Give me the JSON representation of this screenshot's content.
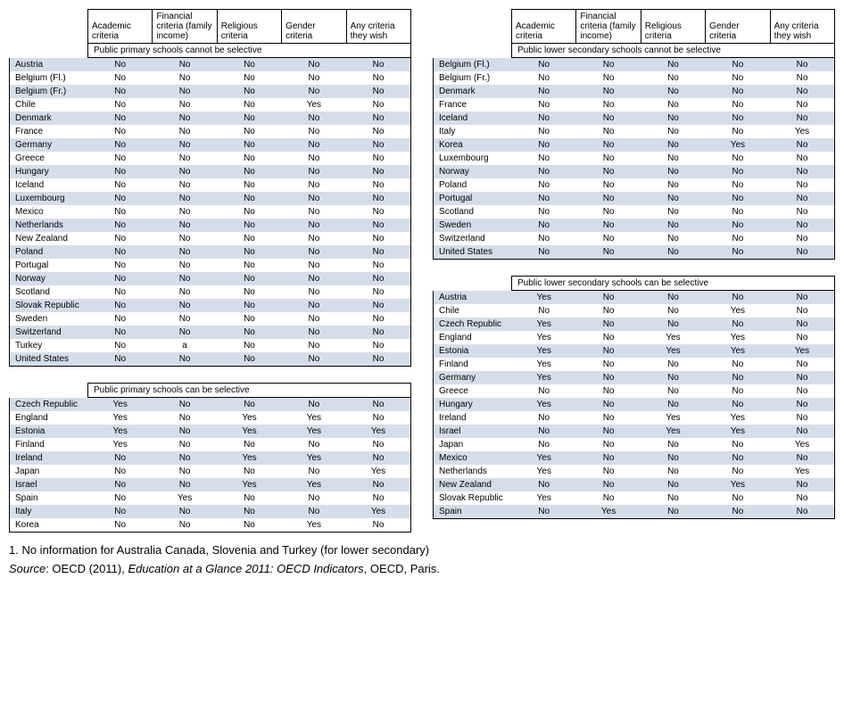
{
  "columns": [
    "Academic criteria",
    "Financial criteria (family income)",
    "Religious criteria",
    "Gender criteria",
    "Any criteria they wish"
  ],
  "colors": {
    "alt_row": "#d4deea",
    "border": "#000000",
    "text": "#000000",
    "background": "#ffffff"
  },
  "tables": [
    {
      "subtitle": "Public primary schools cannot be selective",
      "rows": [
        [
          "Austria",
          "No",
          "No",
          "No",
          "No",
          "No"
        ],
        [
          "Belgium (Fl.)",
          "No",
          "No",
          "No",
          "No",
          "No"
        ],
        [
          "Belgium (Fr.)",
          "No",
          "No",
          "No",
          "No",
          "No"
        ],
        [
          "Chile",
          "No",
          "No",
          "No",
          "Yes",
          "No"
        ],
        [
          "Denmark",
          "No",
          "No",
          "No",
          "No",
          "No"
        ],
        [
          "France",
          "No",
          "No",
          "No",
          "No",
          "No"
        ],
        [
          "Germany",
          "No",
          "No",
          "No",
          "No",
          "No"
        ],
        [
          "Greece",
          "No",
          "No",
          "No",
          "No",
          "No"
        ],
        [
          "Hungary",
          "No",
          "No",
          "No",
          "No",
          "No"
        ],
        [
          "Iceland",
          "No",
          "No",
          "No",
          "No",
          "No"
        ],
        [
          "Luxembourg",
          "No",
          "No",
          "No",
          "No",
          "No"
        ],
        [
          "Mexico",
          "No",
          "No",
          "No",
          "No",
          "No"
        ],
        [
          "Netherlands",
          "No",
          "No",
          "No",
          "No",
          "No"
        ],
        [
          "New Zealand",
          "No",
          "No",
          "No",
          "No",
          "No"
        ],
        [
          "Poland",
          "No",
          "No",
          "No",
          "No",
          "No"
        ],
        [
          "Portugal",
          "No",
          "No",
          "No",
          "No",
          "No"
        ],
        [
          "Norway",
          "No",
          "No",
          "No",
          "No",
          "No"
        ],
        [
          "Scotland",
          "No",
          "No",
          "No",
          "No",
          "No"
        ],
        [
          "Slovak Republic",
          "No",
          "No",
          "No",
          "No",
          "No"
        ],
        [
          "Sweden",
          "No",
          "No",
          "No",
          "No",
          "No"
        ],
        [
          "Switzerland",
          "No",
          "No",
          "No",
          "No",
          "No"
        ],
        [
          "Turkey",
          "No",
          "a",
          "No",
          "No",
          "No"
        ],
        [
          "United States",
          "No",
          "No",
          "No",
          "No",
          "No"
        ]
      ]
    },
    {
      "subtitle": "Public primary schools can be selective",
      "rows": [
        [
          "Czech Republic",
          "Yes",
          "No",
          "No",
          "No",
          "No"
        ],
        [
          "England",
          "Yes",
          "No",
          "Yes",
          "Yes",
          "No"
        ],
        [
          "Estonia",
          "Yes",
          "No",
          "Yes",
          "Yes",
          "Yes"
        ],
        [
          "Finland",
          "Yes",
          "No",
          "No",
          "No",
          "No"
        ],
        [
          "Ireland",
          "No",
          "No",
          "Yes",
          "Yes",
          "No"
        ],
        [
          "Japan",
          "No",
          "No",
          "No",
          "No",
          "Yes"
        ],
        [
          "Israel",
          "No",
          "No",
          "Yes",
          "Yes",
          "No"
        ],
        [
          "Spain",
          "No",
          "Yes",
          "No",
          "No",
          "No"
        ],
        [
          "Italy",
          "No",
          "No",
          "No",
          "No",
          "Yes"
        ],
        [
          "Korea",
          "No",
          "No",
          "No",
          "Yes",
          "No"
        ]
      ]
    },
    {
      "subtitle": "Public lower secondary schools cannot be selective",
      "rows": [
        [
          "Belgium (Fl.)",
          "No",
          "No",
          "No",
          "No",
          "No"
        ],
        [
          "Belgium (Fr.)",
          "No",
          "No",
          "No",
          "No",
          "No"
        ],
        [
          "Denmark",
          "No",
          "No",
          "No",
          "No",
          "No"
        ],
        [
          "France",
          "No",
          "No",
          "No",
          "No",
          "No"
        ],
        [
          "Iceland",
          "No",
          "No",
          "No",
          "No",
          "No"
        ],
        [
          "Italy",
          "No",
          "No",
          "No",
          "No",
          "Yes"
        ],
        [
          "Korea",
          "No",
          "No",
          "No",
          "Yes",
          "No"
        ],
        [
          "Luxembourg",
          "No",
          "No",
          "No",
          "No",
          "No"
        ],
        [
          "Norway",
          "No",
          "No",
          "No",
          "No",
          "No"
        ],
        [
          "Poland",
          "No",
          "No",
          "No",
          "No",
          "No"
        ],
        [
          "Portugal",
          "No",
          "No",
          "No",
          "No",
          "No"
        ],
        [
          "Scotland",
          "No",
          "No",
          "No",
          "No",
          "No"
        ],
        [
          "Sweden",
          "No",
          "No",
          "No",
          "No",
          "No"
        ],
        [
          "Switzerland",
          "No",
          "No",
          "No",
          "No",
          "No"
        ],
        [
          "United States",
          "No",
          "No",
          "No",
          "No",
          "No"
        ]
      ]
    },
    {
      "subtitle": "Public lower secondary schools can be selective",
      "rows": [
        [
          "Austria",
          "Yes",
          "No",
          "No",
          "No",
          "No"
        ],
        [
          "Chile",
          "No",
          "No",
          "No",
          "Yes",
          "No"
        ],
        [
          "Czech Republic",
          "Yes",
          "No",
          "No",
          "No",
          "No"
        ],
        [
          "England",
          "Yes",
          "No",
          "Yes",
          "Yes",
          "No"
        ],
        [
          "Estonia",
          "Yes",
          "No",
          "Yes",
          "Yes",
          "Yes"
        ],
        [
          "Finland",
          "Yes",
          "No",
          "No",
          "No",
          "No"
        ],
        [
          "Germany",
          "Yes",
          "No",
          "No",
          "No",
          "No"
        ],
        [
          "Greece",
          "No",
          "No",
          "No",
          "No",
          "No"
        ],
        [
          "Hungary",
          "Yes",
          "No",
          "No",
          "No",
          "No"
        ],
        [
          "Ireland",
          "No",
          "No",
          "Yes",
          "Yes",
          "No"
        ],
        [
          "Israel",
          "No",
          "No",
          "Yes",
          "Yes",
          "No"
        ],
        [
          "Japan",
          "No",
          "No",
          "No",
          "No",
          "Yes"
        ],
        [
          "Mexico",
          "Yes",
          "No",
          "No",
          "No",
          "No"
        ],
        [
          "Netherlands",
          "Yes",
          "No",
          "No",
          "No",
          "Yes"
        ],
        [
          "New Zealand",
          "No",
          "No",
          "No",
          "Yes",
          "No"
        ],
        [
          "Slovak Republic",
          "Yes",
          "No",
          "No",
          "No",
          "No"
        ],
        [
          "Spain",
          "No",
          "Yes",
          "No",
          "No",
          "No"
        ]
      ]
    }
  ],
  "footnote1": "1. No information for Australia Canada, Slovenia and Turkey (for lower secondary)",
  "source_label": "Source",
  "source_prefix": ": OECD (2011), ",
  "source_title": "Education at a Glance 2011: OECD Indicators",
  "source_suffix": ", OECD, Paris."
}
